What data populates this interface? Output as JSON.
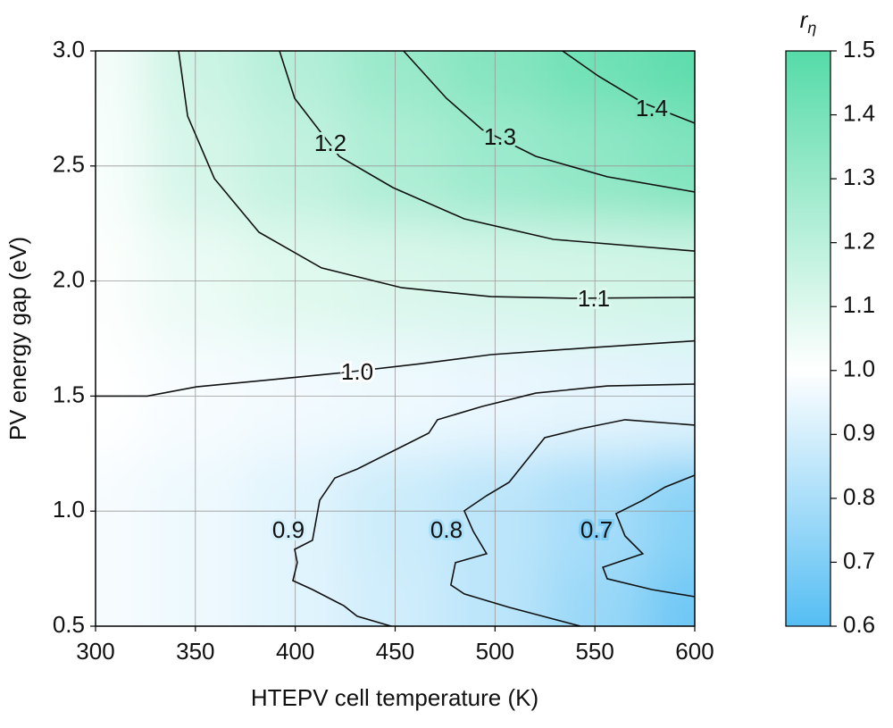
{
  "chart_data": {
    "type": "contour",
    "xlabel": "HTEPV cell temperature (K)",
    "ylabel": "PV energy gap (eV)",
    "xlim": [
      300,
      600
    ],
    "xticks": [
      300,
      350,
      400,
      450,
      500,
      550,
      600
    ],
    "ylim": [
      0.5,
      3.0
    ],
    "yticks": [
      0.5,
      {
        "value": 1,
        "label": "1.0"
      },
      1.5,
      {
        "value": 2,
        "label": "2.0"
      },
      2.5,
      {
        "value": 3,
        "label": "3.0"
      }
    ],
    "grid": true,
    "colormap": [
      {
        "value": 0.6,
        "color": "#55bef3"
      },
      {
        "value": 1,
        "color": "#ffffff"
      },
      {
        "value": 1.5,
        "color": "#55dba8"
      }
    ],
    "colorbar": {
      "title": "r",
      "title_subscript": "η",
      "clim": [
        0.6,
        1.5
      ],
      "ticks": [
        0.6,
        0.7,
        0.8,
        0.9,
        {
          "value": 1,
          "label": "1.0"
        },
        1.1,
        1.2,
        1.3,
        1.4,
        1.5
      ]
    },
    "field": {
      "x": [
        300,
        350,
        400,
        450,
        500,
        550,
        600
      ],
      "y": [
        0.5,
        1,
        1.5,
        2,
        2.5,
        3
      ],
      "z": [
        [
          0.98,
          0.96,
          0.93,
          0.89,
          0.84,
          0.76,
          0.66
        ],
        [
          0.98,
          0.96,
          0.93,
          0.88,
          0.84,
          0.79,
          0.72
        ],
        [
          1.0,
          0.98,
          0.97,
          0.96,
          0.95,
          0.94,
          0.93
        ],
        [
          1.01,
          1.06,
          1.09,
          1.11,
          1.12,
          1.13,
          1.14
        ],
        [
          1.02,
          1.12,
          1.18,
          1.24,
          1.29,
          1.33,
          1.37
        ],
        [
          1.03,
          1.15,
          1.22,
          1.3,
          1.36,
          1.42,
          1.47
        ]
      ]
    },
    "contours": [
      {
        "level": 1,
        "label": "1.0",
        "x": [
          300,
          325.9,
          350.5,
          386.3,
          422.1,
          462.3,
          498,
          547.2,
          600
        ],
        "y": [
          1.5,
          1.5,
          1.54,
          1.57,
          1.6,
          1.64,
          1.68,
          1.71,
          1.74
        ]
      },
      {
        "level": 1.1,
        "label": "1.1",
        "x": [
          341.6,
          346.1,
          359.5,
          381.8,
          413.1,
          453.3,
          498,
          538.3,
          600
        ],
        "y": [
          3.0,
          2.717,
          2.445,
          2.212,
          2.057,
          1.971,
          1.932,
          1.925,
          1.929
        ]
      },
      {
        "level": 1.2,
        "label": "1.2",
        "x": [
          392.1,
          399.7,
          422,
          448.9,
          484.6,
          529.3,
          600
        ],
        "y": [
          3.0,
          2.794,
          2.542,
          2.406,
          2.27,
          2.181,
          2.13
        ]
      },
      {
        "level": 1.3,
        "label": "1.3",
        "x": [
          454.2,
          475.7,
          493.6,
          520.4,
          556.2,
          600
        ],
        "y": [
          3.0,
          2.794,
          2.658,
          2.542,
          2.453,
          2.387
        ]
      },
      {
        "level": 1.4,
        "label": "1.4",
        "x": [
          533.8,
          551.7,
          574,
          600
        ],
        "y": [
          3.0,
          2.891,
          2.775,
          2.686
        ]
      },
      {
        "level": 0.9,
        "label": "0.9",
        "x": [
          448,
          431,
          424.3,
          408.6,
          398.8,
          401,
          399.7,
          408.6,
          412.2,
          419.8,
          431,
          448.9,
          466.8,
          471.2,
          493.6,
          520.4,
          556.2,
          600
        ],
        "y": [
          0.5,
          0.543,
          0.589,
          0.659,
          0.698,
          0.776,
          0.834,
          0.873,
          1.047,
          1.144,
          1.183,
          1.261,
          1.339,
          1.397,
          1.455,
          1.513,
          1.544,
          1.552
        ]
      },
      {
        "level": 0.8,
        "label": "0.8",
        "x": [
          542.8,
          507,
          484.6,
          477.9,
          480.2,
          495.8,
          489.1,
          484.6,
          495.8,
          507,
          524.9,
          542.8,
          565.1,
          600
        ],
        "y": [
          0.5,
          0.582,
          0.64,
          0.679,
          0.776,
          0.815,
          0.912,
          1.001,
          1.067,
          1.125,
          1.319,
          1.358,
          1.397,
          1.374
        ]
      },
      {
        "level": 0.7,
        "label": "0.7",
        "x": [
          600,
          578.5,
          556.2,
          554,
          574,
          565.1,
          560.6,
          574,
          585.2,
          600
        ],
        "y": [
          0.628,
          0.659,
          0.706,
          0.756,
          0.815,
          0.892,
          0.989,
          1.047,
          1.105,
          1.156
        ]
      }
    ]
  }
}
